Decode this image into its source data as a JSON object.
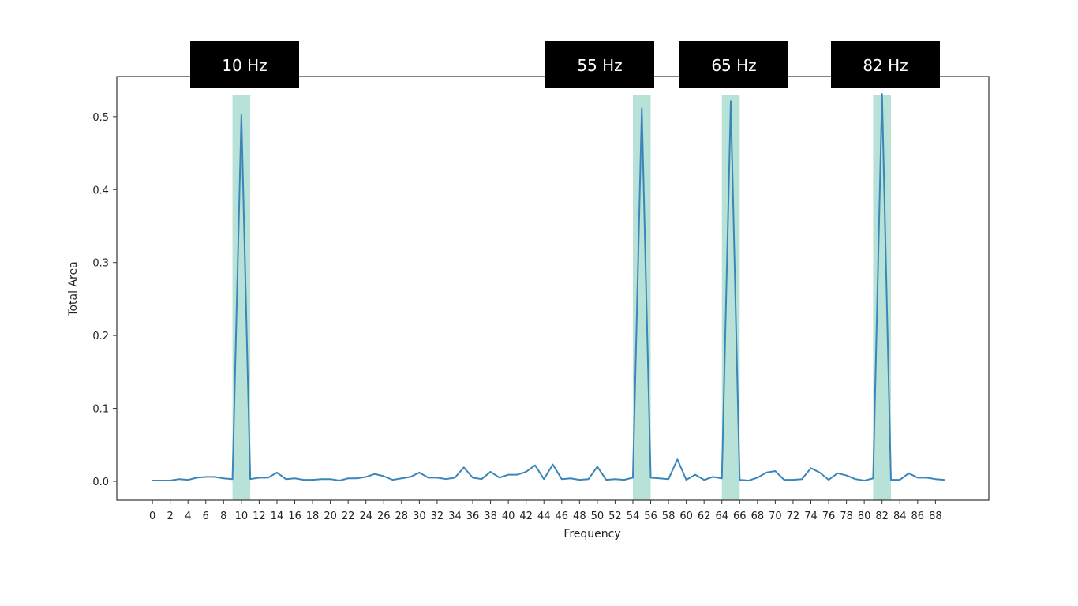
{
  "chart_data": {
    "type": "line",
    "title": "",
    "xlabel": "Frequency",
    "ylabel": "Total Area",
    "xlim": [
      -4,
      94
    ],
    "ylim": [
      -0.026,
      0.555
    ],
    "x_ticks": [
      0,
      2,
      4,
      6,
      8,
      10,
      12,
      14,
      16,
      18,
      20,
      22,
      24,
      26,
      28,
      30,
      32,
      34,
      36,
      38,
      40,
      42,
      44,
      46,
      48,
      50,
      52,
      54,
      56,
      58,
      60,
      62,
      64,
      66,
      68,
      70,
      72,
      74,
      76,
      78,
      80,
      82,
      84,
      86,
      88
    ],
    "y_ticks": [
      0.0,
      0.1,
      0.2,
      0.3,
      0.4,
      0.5
    ],
    "grid": false,
    "line_color": "#3a86b8",
    "highlight_color": "#b8e2d8",
    "series": [
      {
        "x": [
          0,
          1,
          2,
          3,
          4,
          5,
          6,
          7,
          8,
          9,
          10,
          11,
          12,
          13,
          14,
          15,
          16,
          17,
          18,
          19,
          20,
          21,
          22,
          23,
          24,
          25,
          26,
          27,
          28,
          29,
          30,
          31,
          32,
          33,
          34,
          35,
          36,
          37,
          38,
          39,
          40,
          41,
          42,
          43,
          44,
          45,
          46,
          47,
          48,
          49,
          50,
          51,
          52,
          53,
          54,
          55,
          56,
          57,
          58,
          59,
          60,
          61,
          62,
          63,
          64,
          65,
          66,
          67,
          68,
          69,
          70,
          71,
          72,
          73,
          74,
          75,
          76,
          77,
          78,
          79,
          80,
          81,
          82,
          83,
          84,
          85,
          86,
          87,
          88,
          89
        ],
        "values": [
          0.001,
          0.001,
          0.001,
          0.003,
          0.002,
          0.005,
          0.006,
          0.006,
          0.004,
          0.003,
          0.502,
          0.003,
          0.005,
          0.005,
          0.012,
          0.003,
          0.004,
          0.002,
          0.002,
          0.003,
          0.003,
          0.001,
          0.004,
          0.004,
          0.006,
          0.01,
          0.007,
          0.002,
          0.004,
          0.006,
          0.012,
          0.005,
          0.005,
          0.003,
          0.005,
          0.019,
          0.005,
          0.003,
          0.013,
          0.005,
          0.009,
          0.009,
          0.013,
          0.022,
          0.003,
          0.023,
          0.003,
          0.004,
          0.002,
          0.003,
          0.02,
          0.002,
          0.003,
          0.002,
          0.005,
          0.511,
          0.005,
          0.004,
          0.003,
          0.03,
          0.002,
          0.009,
          0.002,
          0.006,
          0.004,
          0.521,
          0.002,
          0.001,
          0.005,
          0.012,
          0.014,
          0.002,
          0.002,
          0.003,
          0.018,
          0.012,
          0.002,
          0.011,
          0.008,
          0.003,
          0.001,
          0.004,
          0.531,
          0.002,
          0.002,
          0.011,
          0.005,
          0.005,
          0.003,
          0.002
        ]
      }
    ],
    "highlights": [
      {
        "center": 10,
        "label": "10 Hz"
      },
      {
        "center": 55,
        "label": "55 Hz"
      },
      {
        "center": 65,
        "label": "65 Hz"
      },
      {
        "center": 82,
        "label": "82 Hz"
      }
    ]
  }
}
